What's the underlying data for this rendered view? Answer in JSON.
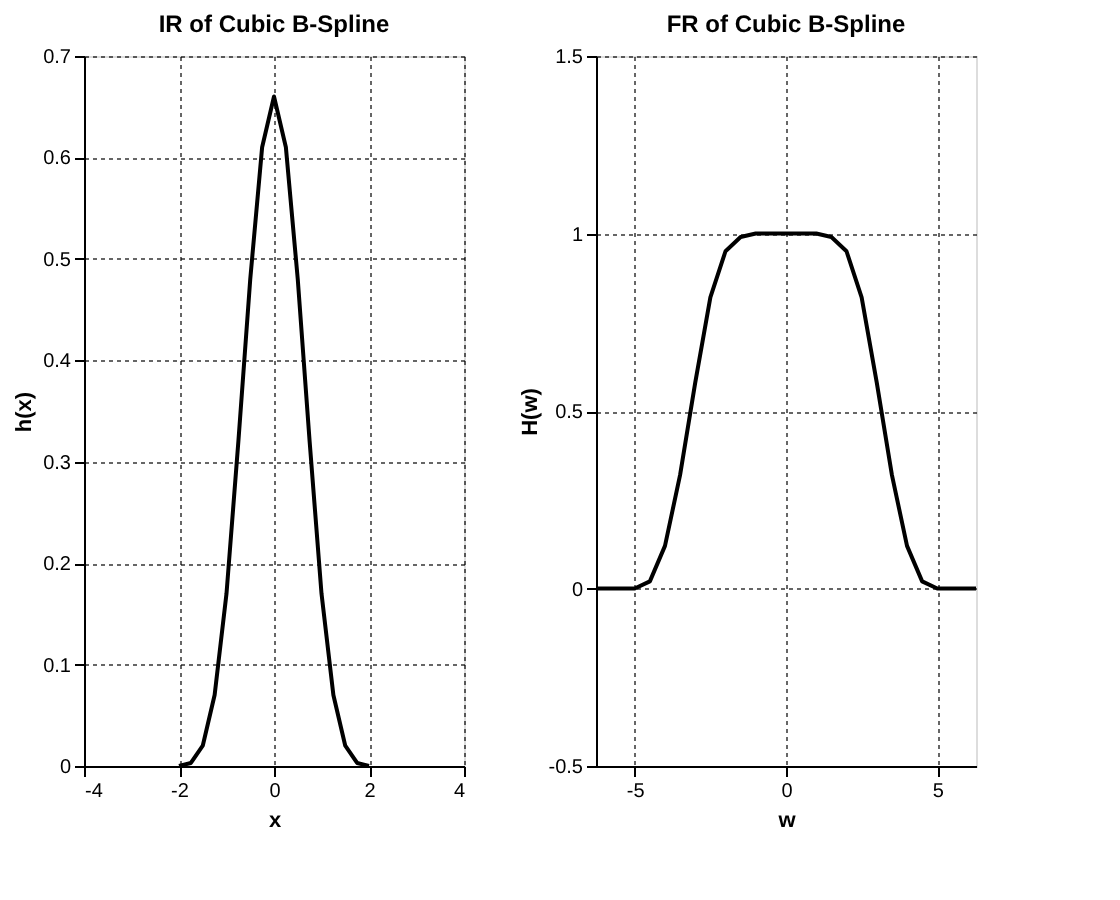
{
  "chart_data": [
    {
      "type": "line",
      "title": "IR of Cubic B-Spline",
      "xlabel": "x",
      "ylabel": "h(x)",
      "xlim": [
        -4,
        4
      ],
      "xticks": [
        -4,
        -2,
        0,
        2,
        4
      ],
      "ylim": [
        0,
        0.7
      ],
      "yticks": [
        0,
        0.1,
        0.2,
        0.3,
        0.4,
        0.5,
        0.6,
        0.7
      ],
      "grid": true,
      "line_style": "solid",
      "marker": "none",
      "series": [
        {
          "color": "#000000",
          "x": [
            -2,
            -1.75,
            -1.5,
            -1.25,
            -1,
            -0.75,
            -0.5,
            -0.25,
            0,
            0.25,
            0.5,
            0.75,
            1,
            1.25,
            1.5,
            1.75,
            2
          ],
          "values": [
            0,
            0.003,
            0.02,
            0.07,
            0.17,
            0.32,
            0.48,
            0.61,
            0.66,
            0.61,
            0.48,
            0.32,
            0.17,
            0.07,
            0.02,
            0.003,
            0
          ]
        }
      ]
    },
    {
      "type": "line",
      "title": "FR of Cubic B-Spline",
      "xlabel": "w",
      "ylabel": "H(w)",
      "xlim": [
        -6.28,
        6.28
      ],
      "xticks": [
        -5,
        0,
        5
      ],
      "ylim": [
        -0.5,
        1.5
      ],
      "yticks": [
        -0.5,
        0,
        0.5,
        1,
        1.5
      ],
      "grid": true,
      "line_style": "solid",
      "marker": "none",
      "series": [
        {
          "color": "#000000",
          "x": [
            -6.28,
            -5,
            -4.5,
            -4,
            -3.5,
            -3,
            -2.5,
            -2,
            -1.5,
            -1,
            0,
            1,
            1.5,
            2,
            2.5,
            3,
            3.5,
            4,
            4.5,
            5,
            6.28
          ],
          "values": [
            0,
            0,
            0.02,
            0.12,
            0.32,
            0.58,
            0.82,
            0.95,
            0.99,
            1,
            1,
            1,
            0.99,
            0.95,
            0.82,
            0.58,
            0.32,
            0.12,
            0.02,
            0,
            0
          ]
        }
      ]
    }
  ]
}
